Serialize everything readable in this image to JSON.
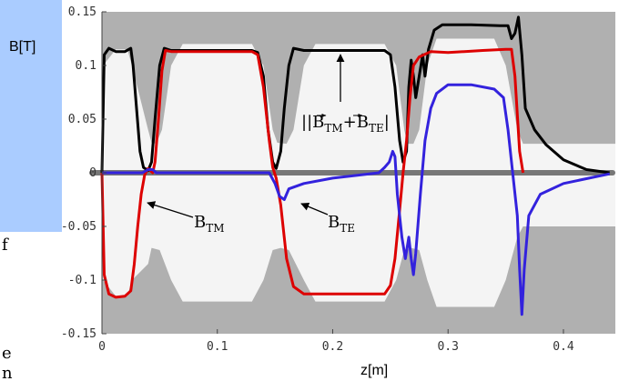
{
  "chart_data": {
    "type": "line",
    "xlabel": "z[m]",
    "ylabel": "B[T]",
    "xlim": [
      0,
      0.445
    ],
    "ylim": [
      -0.15,
      0.15
    ],
    "x_ticks": [
      "0",
      "0.1",
      "0.2",
      "0.3",
      "0.4"
    ],
    "y_ticks": [
      "0.15",
      "0.1",
      "0.05",
      "0",
      "-0.05",
      "-0.1",
      "-0.15"
    ],
    "grid": false,
    "annotations": [
      {
        "text": "|B",
        "sub": "TM",
        "mid": "+B",
        "sub2": "TE",
        "end": "|",
        "points_to": [
          0.19,
          0.113
        ]
      },
      {
        "text": "B",
        "sub": "TM",
        "points_to": [
          0.035,
          -0.027
        ]
      },
      {
        "text": "B",
        "sub": "TE",
        "points_to": [
          0.158,
          -0.025
        ]
      }
    ],
    "cavity_shape_upper": [
      [
        0,
        0.15
      ],
      [
        0.001,
        0.15
      ],
      [
        0.001,
        0.1
      ],
      [
        0.012,
        0.115
      ],
      [
        0.022,
        0.115
      ],
      [
        0.026,
        0.1
      ],
      [
        0.028,
        0.15
      ],
      [
        0.035,
        0.15
      ],
      [
        0.04,
        0.04
      ],
      [
        0.043,
        0.028
      ],
      [
        0.047,
        0.027
      ],
      [
        0.052,
        0.04
      ],
      [
        0.06,
        0.1
      ],
      [
        0.07,
        0.12
      ],
      [
        0.13,
        0.12
      ],
      [
        0.14,
        0.1
      ],
      [
        0.148,
        0.04
      ],
      [
        0.152,
        0.028
      ],
      [
        0.16,
        0.027
      ],
      [
        0.166,
        0.04
      ],
      [
        0.175,
        0.1
      ],
      [
        0.185,
        0.12
      ],
      [
        0.245,
        0.12
      ],
      [
        0.255,
        0.1
      ],
      [
        0.262,
        0.04
      ],
      [
        0.265,
        0.027
      ],
      [
        0.27,
        0.027
      ],
      [
        0.275,
        0.04
      ],
      [
        0.282,
        0.1
      ],
      [
        0.29,
        0.125
      ],
      [
        0.34,
        0.125
      ],
      [
        0.35,
        0.1
      ],
      [
        0.36,
        0.04
      ],
      [
        0.365,
        0.027
      ],
      [
        0.445,
        0.027
      ],
      [
        0.445,
        0.15
      ]
    ],
    "cavity_shape_lower": [
      [
        0,
        -0.15
      ],
      [
        0.001,
        -0.15
      ],
      [
        0.001,
        -0.1
      ],
      [
        0.012,
        -0.115
      ],
      [
        0.022,
        -0.115
      ],
      [
        0.026,
        -0.1
      ],
      [
        0.028,
        -0.15
      ],
      [
        0.035,
        -0.15
      ],
      [
        0.04,
        -0.085
      ],
      [
        0.043,
        -0.07
      ],
      [
        0.05,
        -0.072
      ],
      [
        0.06,
        -0.1
      ],
      [
        0.07,
        -0.12
      ],
      [
        0.13,
        -0.12
      ],
      [
        0.14,
        -0.1
      ],
      [
        0.148,
        -0.072
      ],
      [
        0.155,
        -0.07
      ],
      [
        0.162,
        -0.072
      ],
      [
        0.175,
        -0.1
      ],
      [
        0.185,
        -0.12
      ],
      [
        0.245,
        -0.12
      ],
      [
        0.255,
        -0.1
      ],
      [
        0.262,
        -0.072
      ],
      [
        0.268,
        -0.07
      ],
      [
        0.275,
        -0.072
      ],
      [
        0.282,
        -0.1
      ],
      [
        0.29,
        -0.125
      ],
      [
        0.34,
        -0.125
      ],
      [
        0.35,
        -0.1
      ],
      [
        0.36,
        -0.06
      ],
      [
        0.365,
        -0.05
      ],
      [
        0.445,
        -0.05
      ],
      [
        0.445,
        -0.15
      ]
    ],
    "series": [
      {
        "label_ref": "|B_TM+B_TE|",
        "color": "#000000",
        "points": [
          [
            0.0,
            0.0
          ],
          [
            0.002,
            0.11
          ],
          [
            0.006,
            0.116
          ],
          [
            0.012,
            0.113
          ],
          [
            0.02,
            0.113
          ],
          [
            0.025,
            0.116
          ],
          [
            0.027,
            0.1
          ],
          [
            0.03,
            0.06
          ],
          [
            0.033,
            0.02
          ],
          [
            0.036,
            0.005
          ],
          [
            0.04,
            0.002
          ],
          [
            0.043,
            0.01
          ],
          [
            0.046,
            0.05
          ],
          [
            0.05,
            0.1
          ],
          [
            0.054,
            0.116
          ],
          [
            0.06,
            0.114
          ],
          [
            0.1,
            0.114
          ],
          [
            0.13,
            0.114
          ],
          [
            0.135,
            0.112
          ],
          [
            0.14,
            0.09
          ],
          [
            0.144,
            0.04
          ],
          [
            0.148,
            0.01
          ],
          [
            0.151,
            0.004
          ],
          [
            0.155,
            0.02
          ],
          [
            0.158,
            0.06
          ],
          [
            0.162,
            0.1
          ],
          [
            0.166,
            0.116
          ],
          [
            0.175,
            0.114
          ],
          [
            0.2,
            0.114
          ],
          [
            0.245,
            0.114
          ],
          [
            0.25,
            0.11
          ],
          [
            0.254,
            0.08
          ],
          [
            0.258,
            0.03
          ],
          [
            0.261,
            0.01
          ],
          [
            0.264,
            0.02
          ],
          [
            0.266,
            0.08
          ],
          [
            0.268,
            0.105
          ],
          [
            0.27,
            0.09
          ],
          [
            0.272,
            0.07
          ],
          [
            0.275,
            0.09
          ],
          [
            0.278,
            0.11
          ],
          [
            0.28,
            0.09
          ],
          [
            0.283,
            0.115
          ],
          [
            0.288,
            0.133
          ],
          [
            0.295,
            0.138
          ],
          [
            0.32,
            0.138
          ],
          [
            0.345,
            0.137
          ],
          [
            0.352,
            0.137
          ],
          [
            0.355,
            0.125
          ],
          [
            0.358,
            0.13
          ],
          [
            0.361,
            0.145
          ],
          [
            0.364,
            0.11
          ],
          [
            0.367,
            0.06
          ],
          [
            0.375,
            0.04
          ],
          [
            0.385,
            0.026
          ],
          [
            0.4,
            0.012
          ],
          [
            0.42,
            0.003
          ],
          [
            0.44,
            0.0
          ]
        ]
      },
      {
        "label_ref": "B_TM",
        "color": "#dd0000",
        "points": [
          [
            0.0,
            0.0
          ],
          [
            0.002,
            -0.095
          ],
          [
            0.006,
            -0.113
          ],
          [
            0.012,
            -0.116
          ],
          [
            0.02,
            -0.115
          ],
          [
            0.025,
            -0.11
          ],
          [
            0.028,
            -0.085
          ],
          [
            0.031,
            -0.05
          ],
          [
            0.034,
            -0.02
          ],
          [
            0.037,
            -0.002
          ],
          [
            0.04,
            0.004
          ],
          [
            0.044,
            0.0
          ],
          [
            0.046,
            0.01
          ],
          [
            0.049,
            0.05
          ],
          [
            0.052,
            0.095
          ],
          [
            0.055,
            0.114
          ],
          [
            0.06,
            0.113
          ],
          [
            0.1,
            0.113
          ],
          [
            0.13,
            0.113
          ],
          [
            0.135,
            0.11
          ],
          [
            0.14,
            0.08
          ],
          [
            0.145,
            0.03
          ],
          [
            0.148,
            0.005
          ],
          [
            0.151,
            -0.005
          ],
          [
            0.155,
            -0.03
          ],
          [
            0.16,
            -0.08
          ],
          [
            0.166,
            -0.106
          ],
          [
            0.175,
            -0.113
          ],
          [
            0.2,
            -0.113
          ],
          [
            0.245,
            -0.113
          ],
          [
            0.25,
            -0.105
          ],
          [
            0.254,
            -0.08
          ],
          [
            0.258,
            -0.035
          ],
          [
            0.261,
            0.0
          ],
          [
            0.264,
            0.03
          ],
          [
            0.267,
            0.07
          ],
          [
            0.27,
            0.1
          ],
          [
            0.275,
            0.108
          ],
          [
            0.285,
            0.113
          ],
          [
            0.3,
            0.112
          ],
          [
            0.33,
            0.114
          ],
          [
            0.35,
            0.115
          ],
          [
            0.355,
            0.115
          ],
          [
            0.358,
            0.09
          ],
          [
            0.362,
            0.02
          ],
          [
            0.365,
            0.0
          ]
        ]
      },
      {
        "label_ref": "B_TE",
        "color": "#3322dd",
        "points": [
          [
            0.0,
            0.0
          ],
          [
            0.035,
            0.0
          ],
          [
            0.04,
            0.003
          ],
          [
            0.044,
            0.003
          ],
          [
            0.047,
            0.0
          ],
          [
            0.145,
            0.0
          ],
          [
            0.15,
            -0.01
          ],
          [
            0.154,
            -0.022
          ],
          [
            0.158,
            -0.025
          ],
          [
            0.162,
            -0.015
          ],
          [
            0.175,
            -0.01
          ],
          [
            0.2,
            -0.005
          ],
          [
            0.24,
            0.0
          ],
          [
            0.245,
            0.005
          ],
          [
            0.249,
            0.01
          ],
          [
            0.252,
            0.02
          ],
          [
            0.254,
            0.015
          ],
          [
            0.256,
            -0.02
          ],
          [
            0.26,
            -0.06
          ],
          [
            0.263,
            -0.08
          ],
          [
            0.266,
            -0.06
          ],
          [
            0.268,
            -0.08
          ],
          [
            0.27,
            -0.095
          ],
          [
            0.272,
            -0.075
          ],
          [
            0.276,
            -0.02
          ],
          [
            0.28,
            0.03
          ],
          [
            0.285,
            0.06
          ],
          [
            0.29,
            0.074
          ],
          [
            0.3,
            0.082
          ],
          [
            0.32,
            0.082
          ],
          [
            0.34,
            0.078
          ],
          [
            0.348,
            0.07
          ],
          [
            0.352,
            0.04
          ],
          [
            0.356,
            0.0
          ],
          [
            0.36,
            -0.04
          ],
          [
            0.362,
            -0.09
          ],
          [
            0.364,
            -0.132
          ],
          [
            0.366,
            -0.09
          ],
          [
            0.37,
            -0.04
          ],
          [
            0.38,
            -0.02
          ],
          [
            0.4,
            -0.01
          ],
          [
            0.44,
            -0.001
          ]
        ]
      }
    ]
  },
  "side_text": [
    "f",
    "e",
    "n"
  ]
}
